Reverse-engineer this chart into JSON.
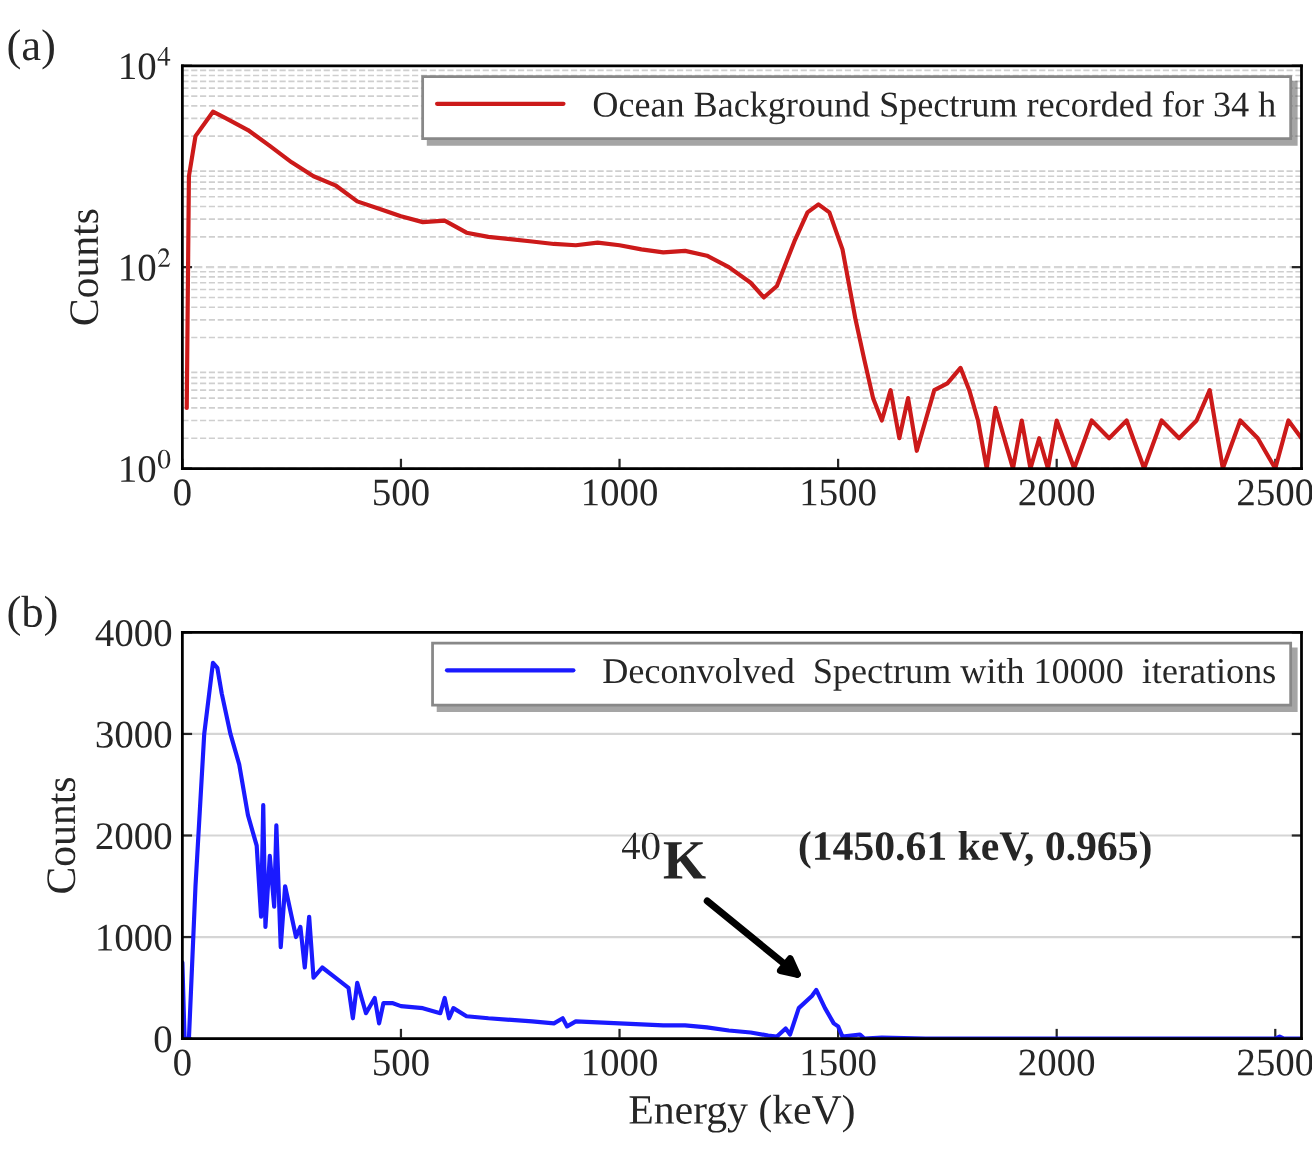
{
  "chart_data": [
    {
      "type": "line",
      "title": "(a)",
      "ylabel": "Counts",
      "log": "y",
      "grid": "y",
      "legend": "top right",
      "xlim": [
        0,
        2560
      ],
      "xticks": [
        0,
        500,
        1000,
        1500,
        2000,
        2500
      ],
      "ylim": [
        1,
        10000
      ],
      "yticks": [
        {
          "value": 1,
          "label": "10$^{0}$"
        },
        {
          "value": 100,
          "label": "10$^{2}$"
        },
        {
          "value": 10000,
          "label": "10$^{4}$"
        }
      ],
      "series": [
        {
          "name": "Ocean Background Spectrum recorded for 34 h",
          "color": "#cc1a1a",
          "x": [
            10,
            15,
            30,
            70,
            100,
            150,
            200,
            250,
            300,
            350,
            400,
            450,
            500,
            550,
            600,
            650,
            700,
            750,
            800,
            850,
            900,
            950,
            1000,
            1050,
            1100,
            1150,
            1200,
            1250,
            1300,
            1330,
            1360,
            1400,
            1430,
            1455,
            1480,
            1510,
            1540,
            1560,
            1580,
            1600,
            1620,
            1640,
            1660,
            1680,
            1700,
            1720,
            1750,
            1780,
            1800,
            1820,
            1840,
            1860,
            1880,
            1900,
            1920,
            1940,
            1960,
            1980,
            2000,
            2040,
            2080,
            2120,
            2160,
            2200,
            2240,
            2280,
            2320,
            2350,
            2380,
            2420,
            2460,
            2500,
            2530,
            2560
          ],
          "values": [
            4,
            800,
            2000,
            3500,
            3000,
            2300,
            1600,
            1100,
            800,
            650,
            450,
            380,
            320,
            280,
            290,
            220,
            200,
            190,
            180,
            170,
            165,
            175,
            165,
            150,
            140,
            145,
            130,
            100,
            70,
            50,
            65,
            180,
            350,
            420,
            350,
            150,
            30,
            12,
            5,
            3,
            6,
            2,
            5,
            1.5,
            3,
            6,
            7,
            10,
            6,
            3,
            1,
            4,
            2,
            1,
            3,
            1,
            2,
            1,
            3,
            1,
            3,
            2,
            3,
            1,
            3,
            2,
            3,
            6,
            1,
            3,
            2,
            1,
            3,
            2
          ]
        }
      ]
    },
    {
      "type": "line",
      "title": "(b)",
      "xlabel": "Energy (keV)",
      "ylabel": "Counts",
      "grid": "y",
      "legend": "top right",
      "xlim": [
        0,
        2560
      ],
      "xticks": [
        0,
        500,
        1000,
        1500,
        2000,
        2500
      ],
      "ylim": [
        0,
        4000
      ],
      "yticks": [
        0,
        1000,
        2000,
        3000,
        4000
      ],
      "annotations": [
        {
          "text": "$^{40}$K",
          "x": 1450,
          "y": 480
        },
        "(1450.61 keV, 0.965)"
      ],
      "series": [
        {
          "name": "Deconvolved  Spectrum with 10000  iterations",
          "color": "#1a1aff",
          "x": [
            0,
            5,
            15,
            30,
            50,
            70,
            80,
            90,
            110,
            130,
            150,
            170,
            180,
            185,
            190,
            200,
            210,
            215,
            225,
            235,
            250,
            260,
            270,
            280,
            290,
            300,
            320,
            350,
            380,
            390,
            400,
            420,
            440,
            450,
            460,
            480,
            500,
            550,
            590,
            600,
            610,
            620,
            650,
            700,
            800,
            850,
            870,
            880,
            900,
            1000,
            1100,
            1150,
            1200,
            1250,
            1300,
            1340,
            1360,
            1380,
            1390,
            1410,
            1440,
            1450,
            1470,
            1490,
            1500,
            1510,
            1550,
            1560,
            1600,
            1700,
            2500,
            2510,
            2520,
            2560
          ],
          "values": [
            750,
            0,
            0,
            1500,
            3000,
            3700,
            3650,
            3400,
            3000,
            2700,
            2200,
            1900,
            1200,
            2300,
            1100,
            1800,
            1300,
            2100,
            900,
            1500,
            1200,
            1000,
            1100,
            700,
            1200,
            600,
            700,
            600,
            500,
            200,
            550,
            250,
            400,
            150,
            350,
            350,
            320,
            300,
            250,
            400,
            200,
            300,
            220,
            200,
            170,
            150,
            200,
            120,
            170,
            150,
            130,
            130,
            110,
            80,
            60,
            30,
            20,
            100,
            40,
            300,
            420,
            480,
            300,
            150,
            120,
            20,
            40,
            0,
            10,
            0,
            0,
            20,
            0,
            0
          ]
        }
      ]
    }
  ]
}
